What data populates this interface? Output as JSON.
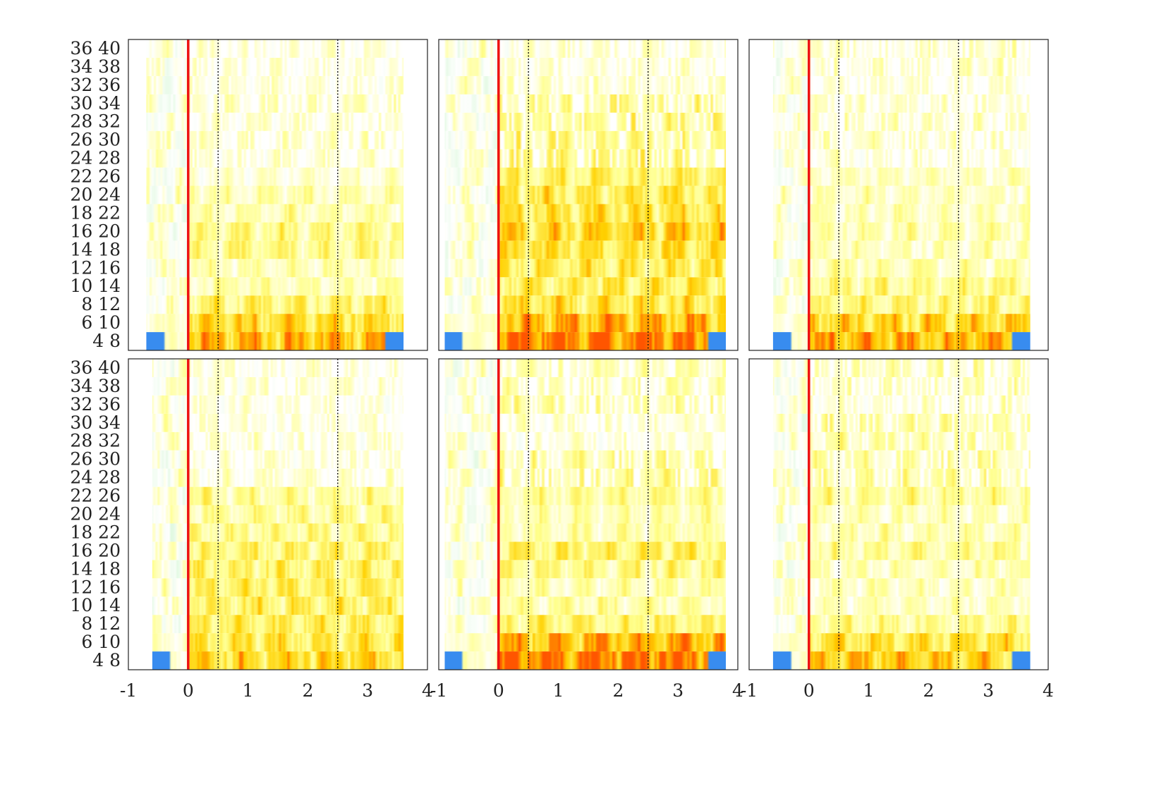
{
  "chart_data": {
    "type": "heatmap",
    "layout": {
      "rows": 2,
      "cols": 3
    },
    "title": "",
    "xlabel": "",
    "ylabel": "",
    "xlim": [
      -1,
      4
    ],
    "x_ticks": [
      "-1",
      "0",
      "1",
      "2",
      "3",
      "4"
    ],
    "x_tick_values": [
      -1,
      0,
      1,
      2,
      3,
      4
    ],
    "y_categories": [
      "4 8",
      "6 10",
      "8 12",
      "10 14",
      "12 16",
      "14 18",
      "16 20",
      "18 22",
      "20 24",
      "22 26",
      "24 28",
      "26 30",
      "28 32",
      "30 34",
      "32 36",
      "34 38",
      "36 40"
    ],
    "event_marker": {
      "x": 0,
      "color": "#ee1111"
    },
    "reference_lines": {
      "x": [
        0.5,
        2.5
      ],
      "style": "dotted"
    },
    "grid": false,
    "colormap": [
      "#1a66ff",
      "#7fe6c8",
      "#dcf8dc",
      "#ffffff",
      "#ffff8c",
      "#ffd000",
      "#ff5500"
    ],
    "value_range": [
      -1,
      1
    ],
    "panels": [
      {
        "position": "row1-col1",
        "active_range": [
          -0.7,
          3.6
        ],
        "band_intensity": [
          0.7,
          0.55,
          0.4,
          0.22,
          0.2,
          0.32,
          0.32,
          0.22,
          0.22,
          0.12,
          0.12,
          0.15,
          0.12,
          0.15,
          0.1,
          0.1,
          0.1
        ],
        "notes": "blue edges on 4 8 band"
      },
      {
        "position": "row1-col2",
        "active_range": [
          -0.9,
          3.8
        ],
        "band_intensity": [
          0.9,
          0.7,
          0.5,
          0.45,
          0.45,
          0.5,
          0.6,
          0.5,
          0.45,
          0.4,
          0.35,
          0.3,
          0.3,
          0.3,
          0.15,
          0.12,
          0.12
        ],
        "notes": "blue edges on 4 8 band"
      },
      {
        "position": "row1-col3",
        "active_range": [
          -0.6,
          3.7
        ],
        "band_intensity": [
          0.72,
          0.58,
          0.35,
          0.32,
          0.22,
          0.18,
          0.22,
          0.18,
          0.18,
          0.18,
          0.12,
          0.15,
          0.15,
          0.12,
          0.1,
          0.15,
          0.15
        ],
        "notes": "blue edges on 4 8 band"
      },
      {
        "position": "row2-col1",
        "active_range": [
          -0.6,
          3.6
        ],
        "band_intensity": [
          0.58,
          0.5,
          0.42,
          0.42,
          0.42,
          0.4,
          0.38,
          0.3,
          0.28,
          0.28,
          0.12,
          0.12,
          0.12,
          0.1,
          0.08,
          0.1,
          0.1
        ],
        "notes": "blue edge on 4 8 band left"
      },
      {
        "position": "row2-col2",
        "active_range": [
          -0.9,
          3.8
        ],
        "band_intensity": [
          0.9,
          0.72,
          0.38,
          0.25,
          0.22,
          0.32,
          0.4,
          0.22,
          0.22,
          0.28,
          0.28,
          0.25,
          0.12,
          0.12,
          0.25,
          0.2,
          0.2
        ],
        "notes": "blue edges on 4 8 band"
      },
      {
        "position": "row2-col3",
        "active_range": [
          -0.6,
          3.7
        ],
        "band_intensity": [
          0.62,
          0.52,
          0.3,
          0.18,
          0.18,
          0.2,
          0.28,
          0.2,
          0.18,
          0.28,
          0.22,
          0.22,
          0.22,
          0.25,
          0.15,
          0.18,
          0.2
        ],
        "notes": "blue edges on 4 8 band"
      }
    ]
  }
}
